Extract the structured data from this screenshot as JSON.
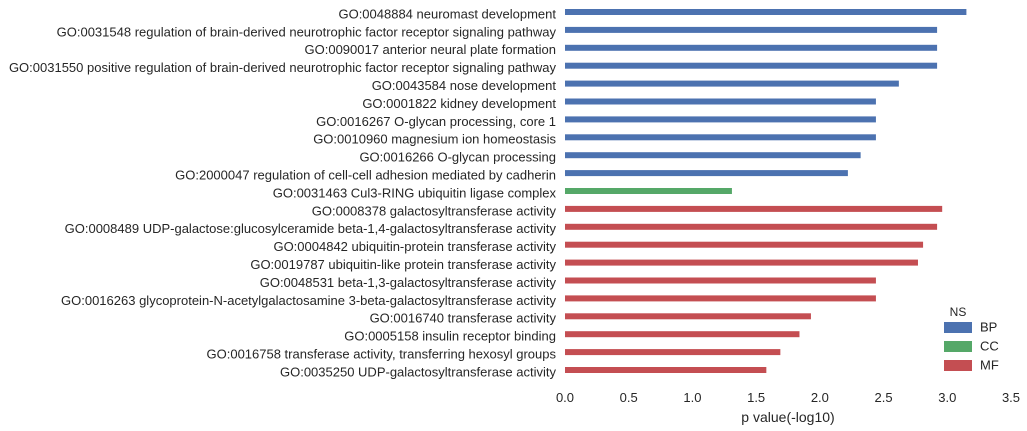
{
  "chart_data": {
    "type": "bar",
    "orientation": "horizontal",
    "title": "",
    "xlabel": "p value(-log10)",
    "ylabel": "",
    "xlim": [
      0,
      3.5
    ],
    "xticks": [
      "0.0",
      "0.5",
      "1.0",
      "1.5",
      "2.0",
      "2.5",
      "3.0",
      "3.5"
    ],
    "grid": false,
    "legend": {
      "title": "NS",
      "position": "bottom-right",
      "entries": [
        {
          "name": "BP",
          "color": "#4c72b0"
        },
        {
          "name": "CC",
          "color": "#55a868"
        },
        {
          "name": "MF",
          "color": "#c44e52"
        }
      ]
    },
    "bars": [
      {
        "label": "GO:0048884 neuromast development",
        "value": 3.15,
        "ns": "BP"
      },
      {
        "label": "GO:0031548 regulation of brain-derived neurotrophic factor receptor signaling pathway",
        "value": 2.92,
        "ns": "BP"
      },
      {
        "label": "GO:0090017 anterior neural plate formation",
        "value": 2.92,
        "ns": "BP"
      },
      {
        "label": "GO:0031550 positive regulation of brain-derived neurotrophic factor receptor signaling pathway",
        "value": 2.92,
        "ns": "BP"
      },
      {
        "label": "GO:0043584 nose development",
        "value": 2.62,
        "ns": "BP"
      },
      {
        "label": "GO:0001822 kidney development",
        "value": 2.44,
        "ns": "BP"
      },
      {
        "label": "GO:0016267 O-glycan processing, core 1",
        "value": 2.44,
        "ns": "BP"
      },
      {
        "label": "GO:0010960 magnesium ion homeostasis",
        "value": 2.44,
        "ns": "BP"
      },
      {
        "label": "GO:0016266 O-glycan processing",
        "value": 2.32,
        "ns": "BP"
      },
      {
        "label": "GO:2000047 regulation of cell-cell adhesion mediated by cadherin",
        "value": 2.22,
        "ns": "BP"
      },
      {
        "label": "GO:0031463 Cul3-RING ubiquitin ligase complex",
        "value": 1.31,
        "ns": "CC"
      },
      {
        "label": "GO:0008378 galactosyltransferase activity",
        "value": 2.96,
        "ns": "MF"
      },
      {
        "label": "GO:0008489 UDP-galactose:glucosylceramide beta-1,4-galactosyltransferase activity",
        "value": 2.92,
        "ns": "MF"
      },
      {
        "label": "GO:0004842 ubiquitin-protein transferase activity",
        "value": 2.81,
        "ns": "MF"
      },
      {
        "label": "GO:0019787 ubiquitin-like protein transferase activity",
        "value": 2.77,
        "ns": "MF"
      },
      {
        "label": "GO:0048531 beta-1,3-galactosyltransferase activity",
        "value": 2.44,
        "ns": "MF"
      },
      {
        "label": "GO:0016263 glycoprotein-N-acetylgalactosamine 3-beta-galactosyltransferase activity",
        "value": 2.44,
        "ns": "MF"
      },
      {
        "label": "GO:0016740 transferase activity",
        "value": 1.93,
        "ns": "MF"
      },
      {
        "label": "GO:0005158 insulin receptor binding",
        "value": 1.84,
        "ns": "MF"
      },
      {
        "label": "GO:0016758 transferase activity, transferring hexosyl groups",
        "value": 1.69,
        "ns": "MF"
      },
      {
        "label": "GO:0035250 UDP-galactosyltransferase activity",
        "value": 1.58,
        "ns": "MF"
      }
    ]
  }
}
